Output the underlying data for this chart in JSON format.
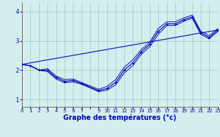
{
  "xlabel": "Graphe des températures (°c)",
  "bg_color": "#d4eeee",
  "line_color": "#0000bb",
  "grid_color": "#a0cccc",
  "hours": [
    0,
    1,
    2,
    3,
    4,
    5,
    6,
    7,
    9,
    10,
    11,
    12,
    13,
    14,
    15,
    16,
    17,
    18,
    19,
    20,
    21,
    22,
    23
  ],
  "temp_actual": [
    2.2,
    2.15,
    2.0,
    2.0,
    1.75,
    1.62,
    1.65,
    1.55,
    1.3,
    1.38,
    1.58,
    2.0,
    2.25,
    2.62,
    2.88,
    3.32,
    3.58,
    3.58,
    3.72,
    3.82,
    3.27,
    3.12,
    3.37
  ],
  "temp_max": [
    2.2,
    2.15,
    2.0,
    2.05,
    1.8,
    1.68,
    1.7,
    1.58,
    1.35,
    1.45,
    1.68,
    2.1,
    2.35,
    2.7,
    2.95,
    3.42,
    3.65,
    3.65,
    3.78,
    3.88,
    3.33,
    3.18,
    3.42
  ],
  "temp_min": [
    2.2,
    2.15,
    2.0,
    1.95,
    1.7,
    1.57,
    1.6,
    1.52,
    1.27,
    1.32,
    1.5,
    1.9,
    2.15,
    2.54,
    2.8,
    3.22,
    3.52,
    3.52,
    3.67,
    3.77,
    3.22,
    3.07,
    3.32
  ],
  "trend_x": [
    0,
    23
  ],
  "trend_y": [
    2.2,
    3.37
  ],
  "ylim": [
    0.75,
    4.3
  ],
  "xlim": [
    0,
    23
  ],
  "yticks": [
    1,
    2,
    3,
    4
  ],
  "xtick_labels": [
    "0",
    "1",
    "2",
    "3",
    "4",
    "5",
    "6",
    "7",
    "",
    "9",
    "10",
    "11",
    "12",
    "13",
    "14",
    "15",
    "16",
    "17",
    "18",
    "19",
    "20",
    "21",
    "22",
    "23"
  ]
}
